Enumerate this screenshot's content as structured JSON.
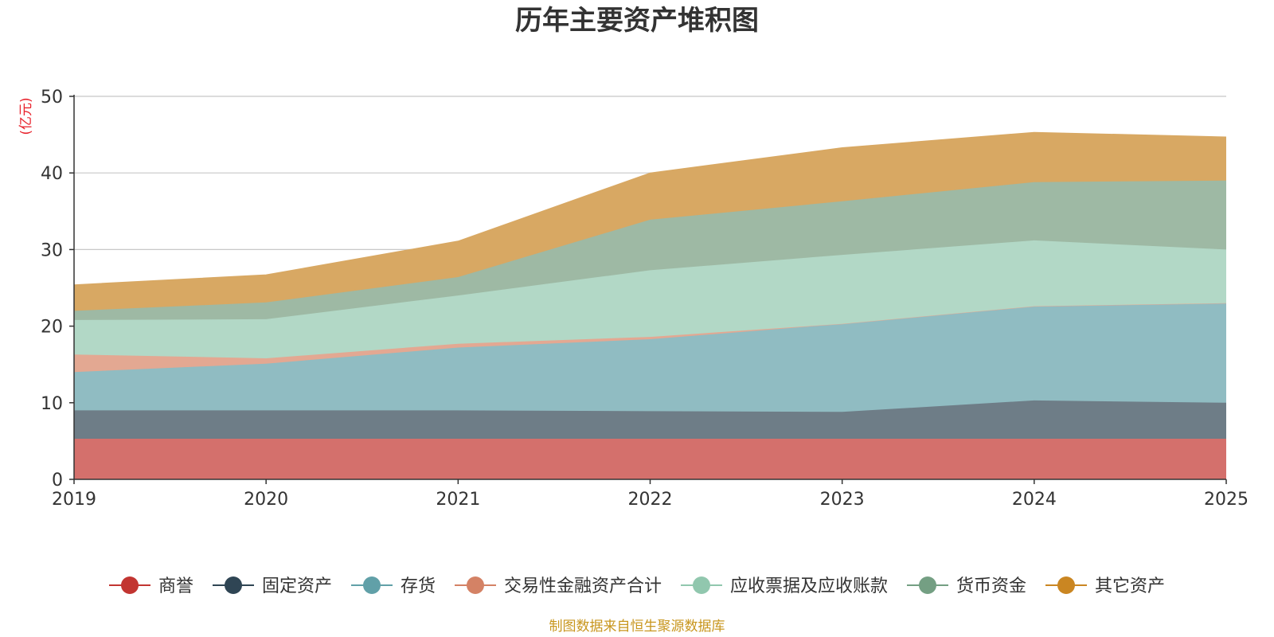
{
  "chart_data": {
    "type": "area",
    "stacked": true,
    "title": "历年主要资产堆积图",
    "ylabel": "(亿元)",
    "xlabel": "",
    "x": [
      "2019",
      "2020",
      "2021",
      "2022",
      "2023",
      "2024",
      "2025"
    ],
    "ylim": [
      0,
      50
    ],
    "yticks": [
      0,
      10,
      20,
      30,
      40,
      50
    ],
    "grid": true,
    "legend_position": "bottom",
    "series": [
      {
        "name": "商誉",
        "color": "#c23531",
        "fill": "#d4706c",
        "values": [
          5.3,
          5.3,
          5.3,
          5.3,
          5.3,
          5.3,
          5.3
        ]
      },
      {
        "name": "固定资产",
        "color": "#2f4554",
        "fill": "#6e7d87",
        "values": [
          3.7,
          3.7,
          3.7,
          3.6,
          3.5,
          5.0,
          4.7
        ]
      },
      {
        "name": "存货",
        "color": "#61a0a8",
        "fill": "#90bcc2",
        "values": [
          5.0,
          6.1,
          8.2,
          9.4,
          11.5,
          12.3,
          13.0
        ]
      },
      {
        "name": "交易性金融资产合计",
        "color": "#d48265",
        "fill": "#e3a892",
        "values": [
          2.3,
          0.7,
          0.5,
          0.3,
          0.0,
          0.0,
          0.0
        ]
      },
      {
        "name": "应收票据及应收账款",
        "color": "#91c7ae",
        "fill": "#b2d8c6",
        "values": [
          4.5,
          5.1,
          6.3,
          8.7,
          9.0,
          8.6,
          7.0
        ]
      },
      {
        "name": "货币资金",
        "color": "#749f83",
        "fill": "#9eb9a4",
        "values": [
          1.2,
          2.2,
          2.4,
          6.6,
          7.0,
          7.6,
          9.0
        ]
      },
      {
        "name": "其它资产",
        "color": "#ca8622",
        "fill": "#d8a863",
        "values": [
          3.4,
          3.6,
          4.7,
          6.1,
          7.0,
          6.5,
          5.7
        ]
      }
    ]
  },
  "footer": {
    "source": "制图数据来自恒生聚源数据库"
  }
}
